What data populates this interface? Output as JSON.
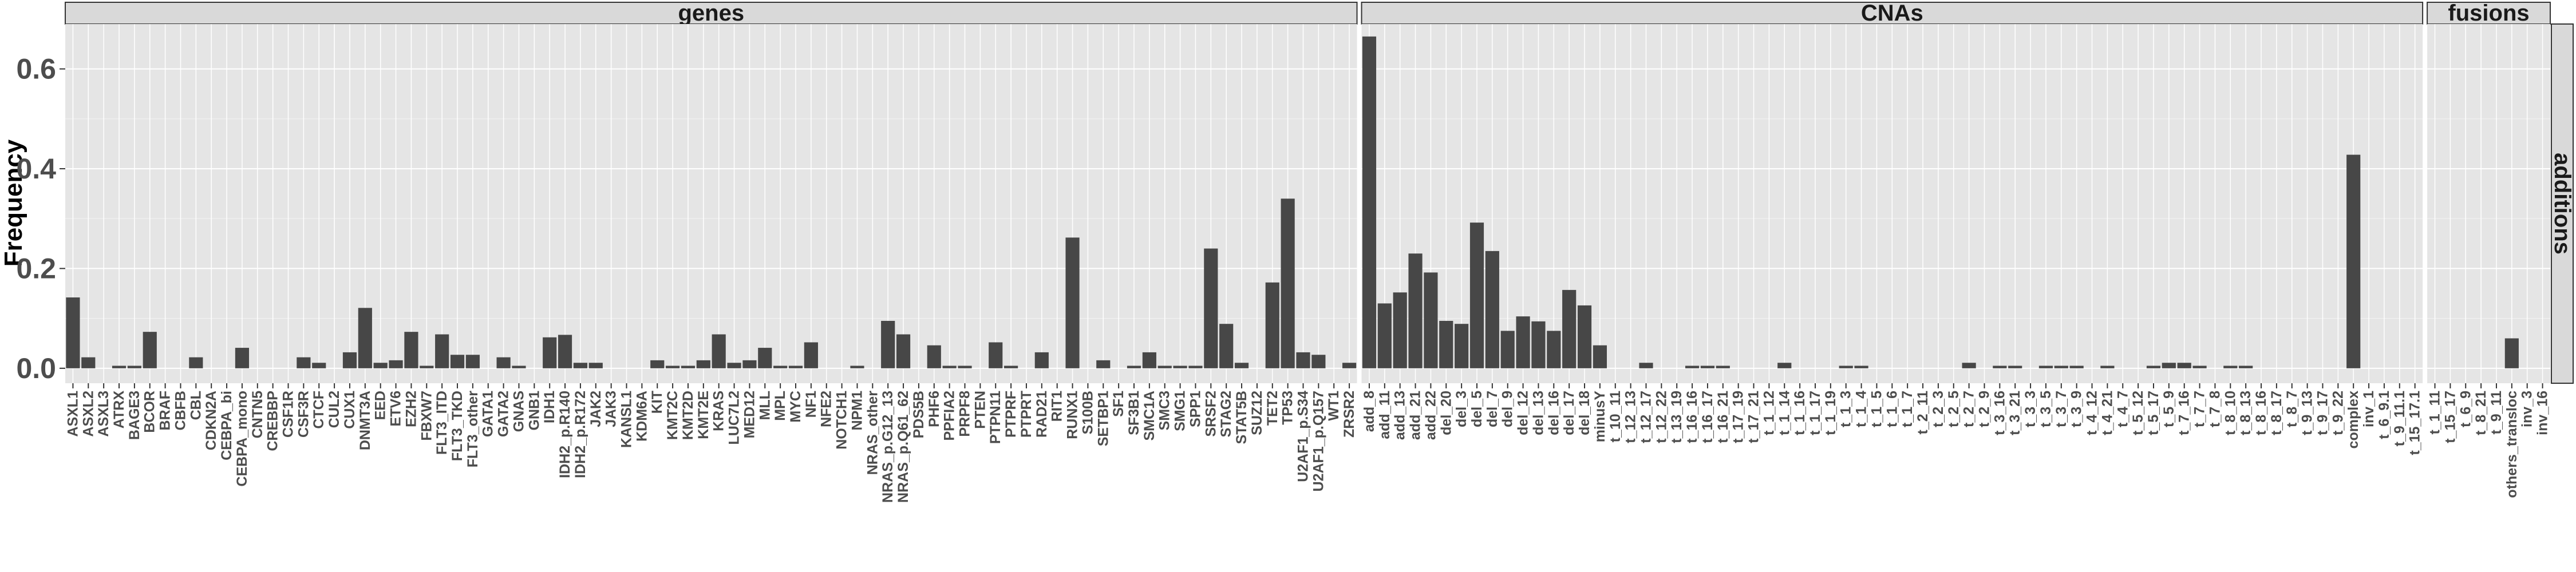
{
  "chart_data": {
    "type": "bar",
    "ylabel": "Frequency",
    "ylim": [
      -0.03,
      0.69
    ],
    "yticks": [
      0.0,
      0.2,
      0.4,
      0.6
    ],
    "ytick_labels": [
      "0.0",
      "0.2",
      "0.4",
      "0.6"
    ],
    "row_strip": "additions",
    "colors": {
      "bar": "#474747",
      "panel_bg": "#e5e5e5",
      "grid": "#ffffff",
      "strip_bg": "#d9d9d9",
      "strip_border": "#333333"
    },
    "panels": [
      {
        "name": "genes",
        "categories": [
          "ASXL1",
          "ASXL2",
          "ASXL3",
          "ATRX",
          "BAGE3",
          "BCOR",
          "BRAF",
          "CBFB",
          "CBL",
          "CDKN2A",
          "CEBPA_bi",
          "CEBPA_mono",
          "CNTN5",
          "CREBBP",
          "CSF1R",
          "CSF3R",
          "CTCF",
          "CUL2",
          "CUX1",
          "DNMT3A",
          "EED",
          "ETV6",
          "EZH2",
          "FBXW7",
          "FLT3_ITD",
          "FLT3_TKD",
          "FLT3_other",
          "GATA1",
          "GATA2",
          "GNAS",
          "GNB1",
          "IDH1",
          "IDH2_p.R140",
          "IDH2_p.R172",
          "JAK2",
          "JAK3",
          "KANSL1",
          "KDM6A",
          "KIT",
          "KMT2C",
          "KMT2D",
          "KMT2E",
          "KRAS",
          "LUC7L2",
          "MED12",
          "MLL",
          "MPL",
          "MYC",
          "NF1",
          "NFE2",
          "NOTCH1",
          "NPM1",
          "NRAS_other",
          "NRAS_p.G12_13",
          "NRAS_p.Q61_62",
          "PDS5B",
          "PHF6",
          "PPFIA2",
          "PRPF8",
          "PTEN",
          "PTPN11",
          "PTPRF",
          "PTPRT",
          "RAD21",
          "RIT1",
          "RUNX1",
          "S100B",
          "SETBP1",
          "SF1",
          "SF3B1",
          "SMC1A",
          "SMC3",
          "SMG1",
          "SPP1",
          "SRSF2",
          "STAG2",
          "STAT5B",
          "SUZ12",
          "TET2",
          "TP53",
          "U2AF1_p.S34",
          "U2AF1_p.Q157",
          "WT1",
          "ZRSR2"
        ],
        "values": [
          0.142,
          0.022,
          0.0,
          0.005,
          0.005,
          0.073,
          0.0,
          0.0,
          0.022,
          0.0,
          0.0,
          0.041,
          0.0,
          0.0,
          0.0,
          0.022,
          0.011,
          0.0,
          0.032,
          0.121,
          0.011,
          0.016,
          0.073,
          0.005,
          0.068,
          0.027,
          0.027,
          0.0,
          0.022,
          0.005,
          0.0,
          0.062,
          0.067,
          0.011,
          0.011,
          0.0,
          0.0,
          0.0,
          0.016,
          0.005,
          0.005,
          0.016,
          0.068,
          0.011,
          0.016,
          0.041,
          0.005,
          0.005,
          0.052,
          0.0,
          0.0,
          0.005,
          0.0,
          0.095,
          0.068,
          0.0,
          0.046,
          0.005,
          0.005,
          0.0,
          0.052,
          0.005,
          0.0,
          0.032,
          0.0,
          0.262,
          0.0,
          0.016,
          0.0,
          0.005,
          0.032,
          0.005,
          0.005,
          0.005,
          0.24,
          0.089,
          0.011,
          0.0,
          0.172,
          0.34,
          0.032,
          0.027,
          0.0,
          0.011
        ]
      },
      {
        "name": "CNAs",
        "categories": [
          "add_8",
          "add_11",
          "add_13",
          "add_21",
          "add_22",
          "del_20",
          "del_3",
          "del_5",
          "del_7",
          "del_9",
          "del_12",
          "del_13",
          "del_16",
          "del_17",
          "del_18",
          "minusY",
          "t_10_11",
          "t_12_13",
          "t_12_17",
          "t_12_22",
          "t_13_19",
          "t_16_16",
          "t_16_17",
          "t_16_21",
          "t_17_19",
          "t_17_21",
          "t_1_12",
          "t_1_14",
          "t_1_16",
          "t_1_17",
          "t_1_19",
          "t_1_3",
          "t_1_4",
          "t_1_5",
          "t_1_6",
          "t_1_7",
          "t_2_11",
          "t_2_3",
          "t_2_5",
          "t_2_7",
          "t_2_9",
          "t_3_16",
          "t_3_21",
          "t_3_3",
          "t_3_5",
          "t_3_7",
          "t_3_9",
          "t_4_12",
          "t_4_21",
          "t_4_7",
          "t_5_12",
          "t_5_17",
          "t_5_9",
          "t_7_16",
          "t_7_7",
          "t_7_8",
          "t_8_10",
          "t_8_13",
          "t_8_16",
          "t_8_17",
          "t_8_7",
          "t_9_13",
          "t_9_17",
          "t_9_22",
          "complex",
          "inv_1",
          "t_6_9.1",
          "t_9_11.1",
          "t_15_17.1"
        ],
        "values": [
          0.665,
          0.13,
          0.152,
          0.23,
          0.192,
          0.095,
          0.089,
          0.292,
          0.235,
          0.075,
          0.104,
          0.094,
          0.075,
          0.157,
          0.126,
          0.046,
          0.0,
          0.0,
          0.011,
          0.0,
          0.0,
          0.005,
          0.005,
          0.005,
          0.0,
          0.0,
          0.0,
          0.011,
          0.0,
          0.0,
          0.0,
          0.005,
          0.005,
          0.0,
          0.0,
          0.0,
          0.0,
          0.0,
          0.0,
          0.011,
          0.0,
          0.005,
          0.005,
          0.0,
          0.005,
          0.005,
          0.005,
          0.0,
          0.005,
          0.0,
          0.0,
          0.005,
          0.011,
          0.011,
          0.005,
          0.0,
          0.005,
          0.005,
          0.0,
          0.0,
          0.0,
          0.0,
          0.0,
          0.0,
          0.428,
          0.0,
          0.0,
          0.0,
          0.0
        ]
      },
      {
        "name": "fusions",
        "categories": [
          "t_1_11",
          "t_15_17",
          "t_6_9",
          "t_8_21",
          "t_9_11",
          "others_transloc",
          "inv_3",
          "inv_16"
        ],
        "values": [
          0.0,
          0.0,
          0.0,
          0.0,
          0.0,
          0.06,
          0.0,
          0.0
        ]
      }
    ]
  }
}
